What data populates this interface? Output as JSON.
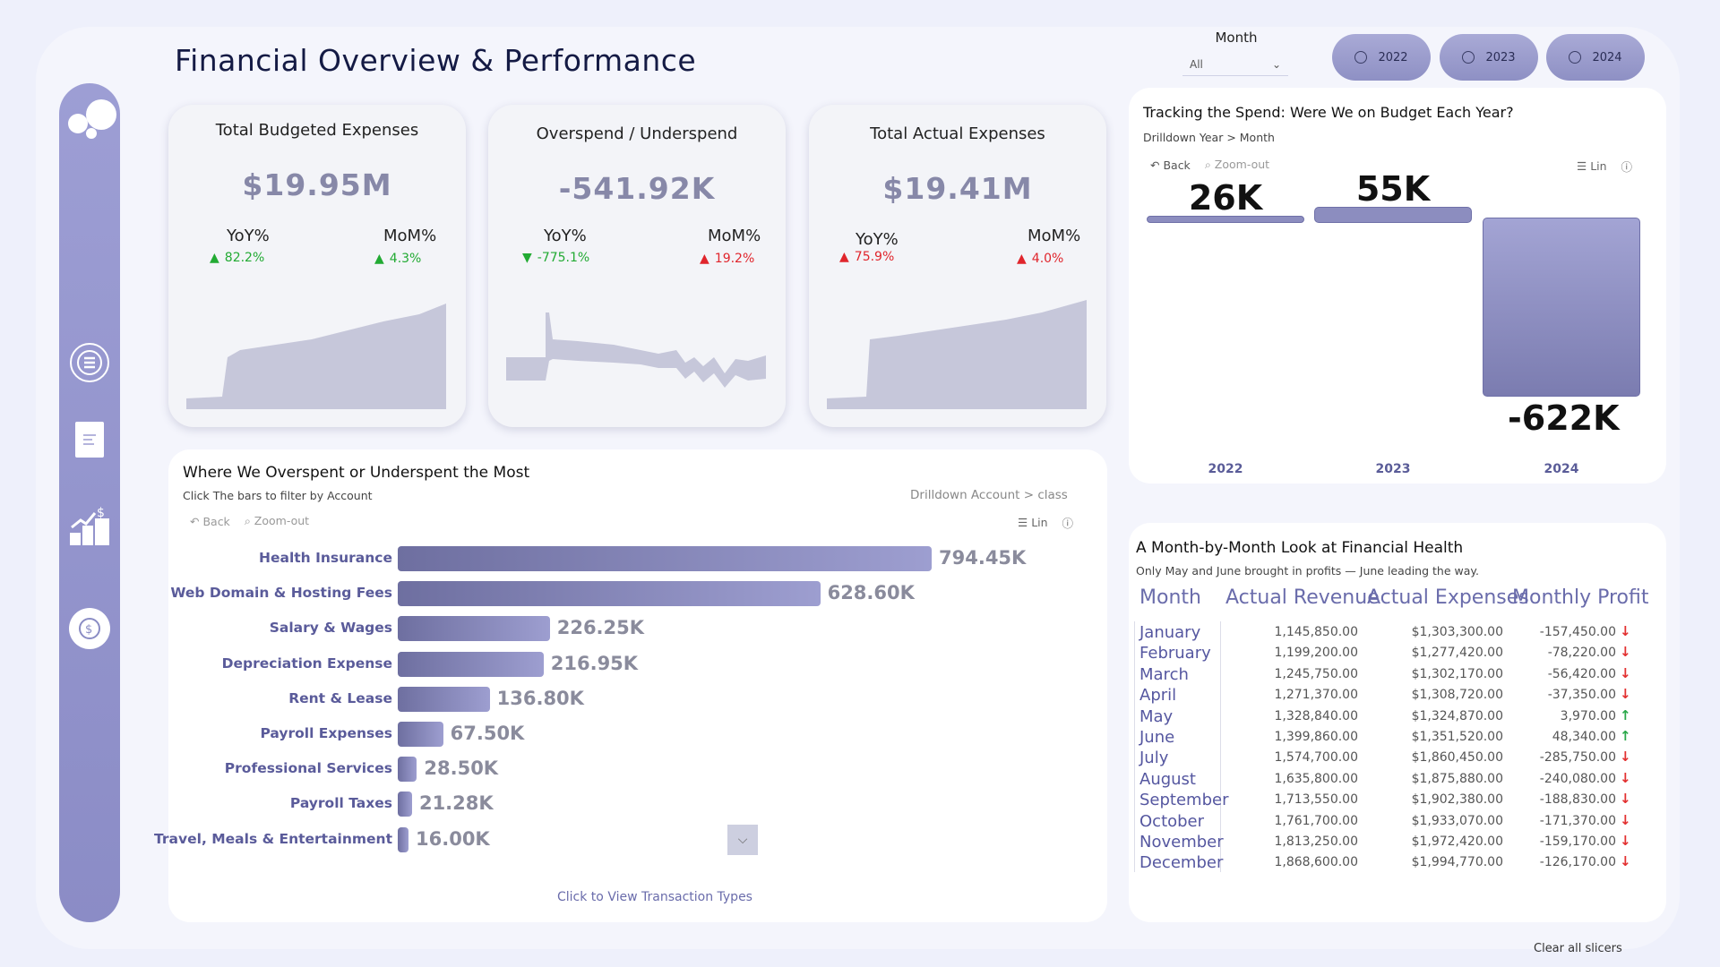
{
  "title": "Financial Overview & Performance",
  "month_slicer": {
    "label": "Month",
    "value": "All"
  },
  "years": [
    "2022",
    "2023",
    "2024"
  ],
  "kpis": [
    {
      "title": "Total Budgeted Expenses",
      "value": "$19.95M",
      "yoy_label": "YoY%",
      "yoy": "82.2%",
      "yoy_dir": "up",
      "yoy_color": "#22aa33",
      "mom_label": "MoM%",
      "mom": "4.3%",
      "mom_dir": "up",
      "mom_color": "#22aa33"
    },
    {
      "title": "Overspend / Underspend",
      "value": "-541.92K",
      "yoy_label": "YoY%",
      "yoy": "-775.1%",
      "yoy_dir": "down",
      "yoy_color": "#22aa33",
      "mom_label": "MoM%",
      "mom": "19.2%",
      "mom_dir": "up",
      "mom_color": "#e0252c"
    },
    {
      "title": "Total Actual Expenses",
      "value": "$19.41M",
      "yoy_label": "YoY%",
      "yoy": "75.9%",
      "yoy_dir": "up",
      "yoy_color": "#e0252c",
      "mom_label": "MoM%",
      "mom": "4.0%",
      "mom_dir": "up",
      "mom_color": "#e0252c"
    }
  ],
  "spend_panel": {
    "title": "Where We Overspent or Underspent the Most",
    "subtitle": "Click The bars to filter by Account",
    "drill": "Drilldown Account > class",
    "back": "Back",
    "zoom": "Zoom-out",
    "lin": "Lin",
    "footer": "Click to View Transaction Types"
  },
  "tracking_panel": {
    "title": "Tracking the Spend: Were We on Budget Each Year?",
    "drill": "Drilldown Year > Month",
    "back": "Back",
    "zoom": "Zoom-out",
    "lin": "Lin"
  },
  "table_panel": {
    "title": "A Month-by-Month Look at Financial Health",
    "subtitle": "Only May and June brought in profits — June leading the way.",
    "headers": [
      "Month",
      "Actual Revenue",
      "Actual Expenses",
      "Monthly Profit"
    ],
    "rows": [
      {
        "month": "January",
        "revenue": "1,145,850.00",
        "expenses": "$1,303,300.00",
        "profit": "-157,450.00",
        "dir": "down"
      },
      {
        "month": "February",
        "revenue": "1,199,200.00",
        "expenses": "$1,277,420.00",
        "profit": "-78,220.00",
        "dir": "down"
      },
      {
        "month": "March",
        "revenue": "1,245,750.00",
        "expenses": "$1,302,170.00",
        "profit": "-56,420.00",
        "dir": "down"
      },
      {
        "month": "April",
        "revenue": "1,271,370.00",
        "expenses": "$1,308,720.00",
        "profit": "-37,350.00",
        "dir": "down"
      },
      {
        "month": "May",
        "revenue": "1,328,840.00",
        "expenses": "$1,324,870.00",
        "profit": "3,970.00",
        "dir": "up"
      },
      {
        "month": "June",
        "revenue": "1,399,860.00",
        "expenses": "$1,351,520.00",
        "profit": "48,340.00",
        "dir": "up"
      },
      {
        "month": "July",
        "revenue": "1,574,700.00",
        "expenses": "$1,860,450.00",
        "profit": "-285,750.00",
        "dir": "down"
      },
      {
        "month": "August",
        "revenue": "1,635,800.00",
        "expenses": "$1,875,880.00",
        "profit": "-240,080.00",
        "dir": "down"
      },
      {
        "month": "September",
        "revenue": "1,713,550.00",
        "expenses": "$1,902,380.00",
        "profit": "-188,830.00",
        "dir": "down"
      },
      {
        "month": "October",
        "revenue": "1,761,700.00",
        "expenses": "$1,933,070.00",
        "profit": "-171,370.00",
        "dir": "down"
      },
      {
        "month": "November",
        "revenue": "1,813,250.00",
        "expenses": "$1,972,420.00",
        "profit": "-159,170.00",
        "dir": "down"
      },
      {
        "month": "December",
        "revenue": "1,868,600.00",
        "expenses": "$1,994,770.00",
        "profit": "-126,170.00",
        "dir": "down"
      }
    ]
  },
  "clear_slicers": "Clear all slicers",
  "chart_data": [
    {
      "type": "bar",
      "orientation": "horizontal",
      "categories": [
        "Health Insurance",
        "Web Domain & Hosting Fees",
        "Salary & Wages",
        "Depreciation Expense",
        "Rent & Lease",
        "Payroll Expenses",
        "Professional Services",
        "Payroll Taxes",
        "Travel, Meals & Entertainment"
      ],
      "values": [
        794.45,
        628.6,
        226.25,
        216.95,
        136.8,
        67.5,
        28.5,
        21.28,
        16.0
      ],
      "labels": [
        "794.45K",
        "628.60K",
        "226.25K",
        "216.95K",
        "136.80K",
        "67.50K",
        "28.50K",
        "21.28K",
        "16.00K"
      ],
      "unit": "K"
    },
    {
      "type": "bar",
      "categories": [
        "2022",
        "2023",
        "2024"
      ],
      "values": [
        26,
        55,
        -622
      ],
      "labels": [
        "26K",
        "55K",
        "-622K"
      ],
      "unit": "K"
    }
  ]
}
